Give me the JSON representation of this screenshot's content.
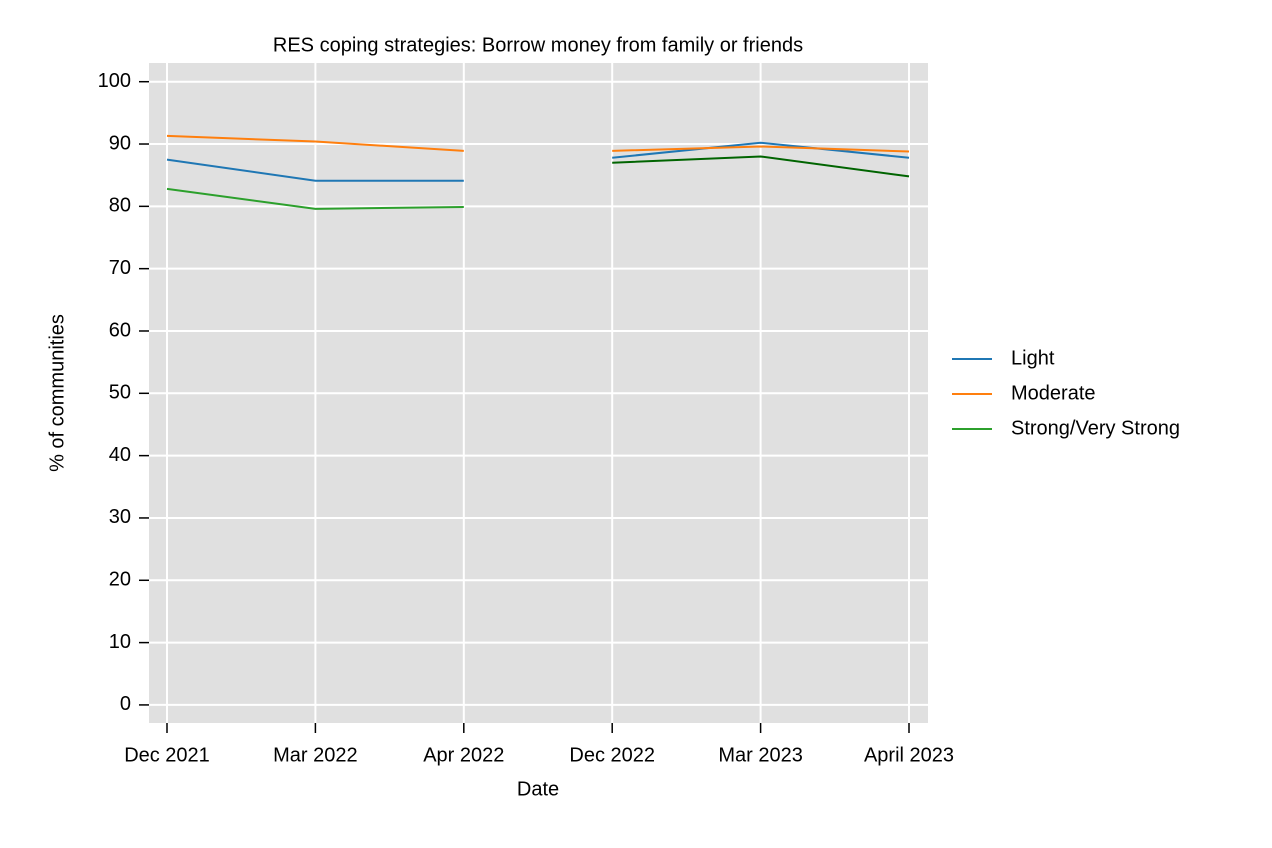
{
  "chart_data": {
    "type": "line",
    "title": "RES coping strategies: Borrow money from family or friends",
    "x_label": "Date",
    "y_label": "% of communities",
    "categories": [
      "Dec 2021",
      "Mar 2022",
      "Apr 2022",
      "Dec 2022",
      "Mar 2023",
      "April 2023"
    ],
    "series": [
      {
        "name": "Light",
        "color": "#1f77b4",
        "values": [
          87.5,
          84.1,
          84.1,
          null,
          null,
          null
        ]
      },
      {
        "name": "Moderate",
        "color": "#ff7f0e",
        "values": [
          91.3,
          90.4,
          88.9,
          null,
          null,
          null
        ]
      },
      {
        "name": "Strong/Very Strong",
        "color": "#2ca02c",
        "values": [
          82.8,
          79.6,
          79.9,
          null,
          null,
          null
        ]
      },
      {
        "color": "#1f77b4",
        "values": [
          null,
          null,
          null,
          87.8,
          90.2,
          87.8
        ]
      },
      {
        "color": "#ff7f0e",
        "values": [
          null,
          null,
          null,
          88.9,
          89.6,
          88.8
        ]
      },
      {
        "color": "#006400",
        "values": [
          null,
          null,
          null,
          87.0,
          88.0,
          84.8
        ]
      }
    ],
    "ylim": [
      -2.9,
      103
    ],
    "yticks": [
      0,
      10,
      20,
      30,
      40,
      50,
      60,
      70,
      80,
      90,
      100
    ],
    "grid": true,
    "legend": "right"
  }
}
